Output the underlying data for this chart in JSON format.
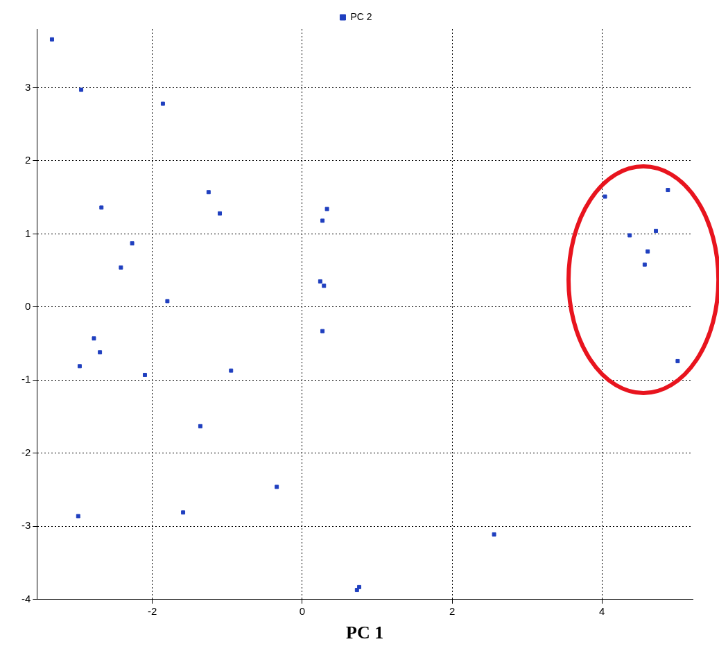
{
  "chart_data": {
    "type": "scatter",
    "xlabel": "PC 1",
    "legend": "top",
    "grid": true,
    "marker": "square",
    "xlim": [
      -3.54,
      5.21
    ],
    "xticks": [
      -2,
      0,
      2,
      4
    ],
    "ylim": [
      -4,
      3.8
    ],
    "yticks": [
      -4,
      -3,
      -2,
      -1,
      0,
      1,
      2,
      3
    ],
    "series": [
      {
        "name": "PC 2",
        "color": "#1f3fbf",
        "x": [
          -3.34,
          -2.95,
          -1.86,
          -1.25,
          -1.1,
          -2.68,
          -2.27,
          -2.42,
          -1.8,
          -2.78,
          -2.7,
          -2.97,
          -2.1,
          -0.95,
          -1.36,
          -0.34,
          -1.59,
          -2.99,
          0.33,
          0.27,
          0.24,
          0.29,
          0.27,
          2.56,
          0.76,
          0.73,
          4.04,
          4.88,
          4.37,
          4.72,
          4.61,
          4.57,
          5.01
        ],
        "values": [
          3.66,
          2.97,
          2.78,
          1.57,
          1.28,
          1.36,
          0.87,
          0.54,
          0.08,
          -0.43,
          -0.62,
          -0.81,
          -0.93,
          -0.87,
          -1.63,
          -2.46,
          -2.81,
          -2.86,
          1.34,
          1.18,
          0.35,
          0.29,
          -0.33,
          -3.11,
          -3.83,
          -3.87,
          1.51,
          1.6,
          0.98,
          1.04,
          0.76,
          0.58,
          -0.74
        ]
      }
    ]
  }
}
